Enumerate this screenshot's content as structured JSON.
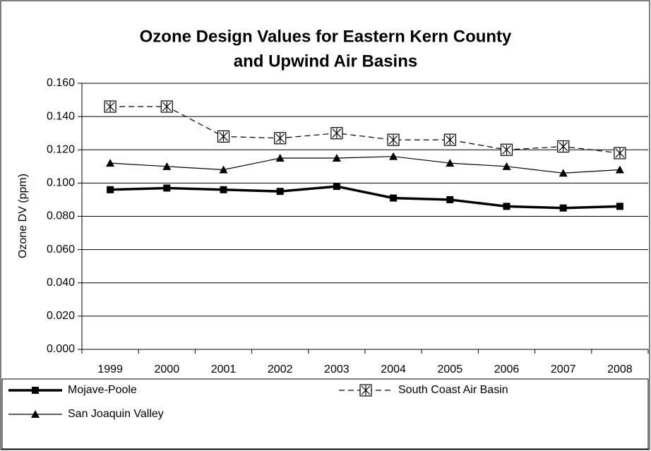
{
  "chart_data": {
    "type": "line",
    "title": [
      "Ozone Design Values for Eastern Kern County",
      "and Upwind Air Basins"
    ],
    "ylabel": "Ozone DV (ppm)",
    "categories": [
      "1999",
      "2000",
      "2001",
      "2002",
      "2003",
      "2004",
      "2005",
      "2006",
      "2007",
      "2008"
    ],
    "series": [
      {
        "name": "Mojave-Poole",
        "color": "#000000",
        "marker": "square",
        "line_style": "bold",
        "values": [
          0.096,
          0.097,
          0.096,
          0.095,
          0.098,
          0.091,
          0.09,
          0.086,
          0.085,
          0.086
        ]
      },
      {
        "name": "South Coast Air Basin",
        "color": "#000000",
        "marker": "boxed-asterisk",
        "line_style": "dashed",
        "values": [
          0.146,
          0.146,
          0.128,
          0.127,
          0.13,
          0.126,
          0.126,
          0.12,
          0.122,
          0.118
        ]
      },
      {
        "name": "San Joaquin Valley",
        "color": "#000000",
        "marker": "triangle",
        "line_style": "solid",
        "values": [
          0.112,
          0.11,
          0.108,
          0.115,
          0.115,
          0.116,
          0.112,
          0.11,
          0.106,
          0.108
        ]
      }
    ],
    "ylim": [
      0,
      0.16
    ],
    "yticks": [
      {
        "value": 0,
        "label": "0.000"
      },
      {
        "value": 0.02,
        "label": "0.020"
      },
      {
        "value": 0.04,
        "label": "0.040"
      },
      {
        "value": 0.06,
        "label": "0.060"
      },
      {
        "value": 0.08,
        "label": "0.080"
      },
      {
        "value": 0.1,
        "label": "0.100"
      },
      {
        "value": 0.12,
        "label": "0.120"
      },
      {
        "value": 0.14,
        "label": "0.140"
      },
      {
        "value": 0.16,
        "label": "0.160"
      }
    ],
    "grid": true,
    "legend": "bottom"
  }
}
